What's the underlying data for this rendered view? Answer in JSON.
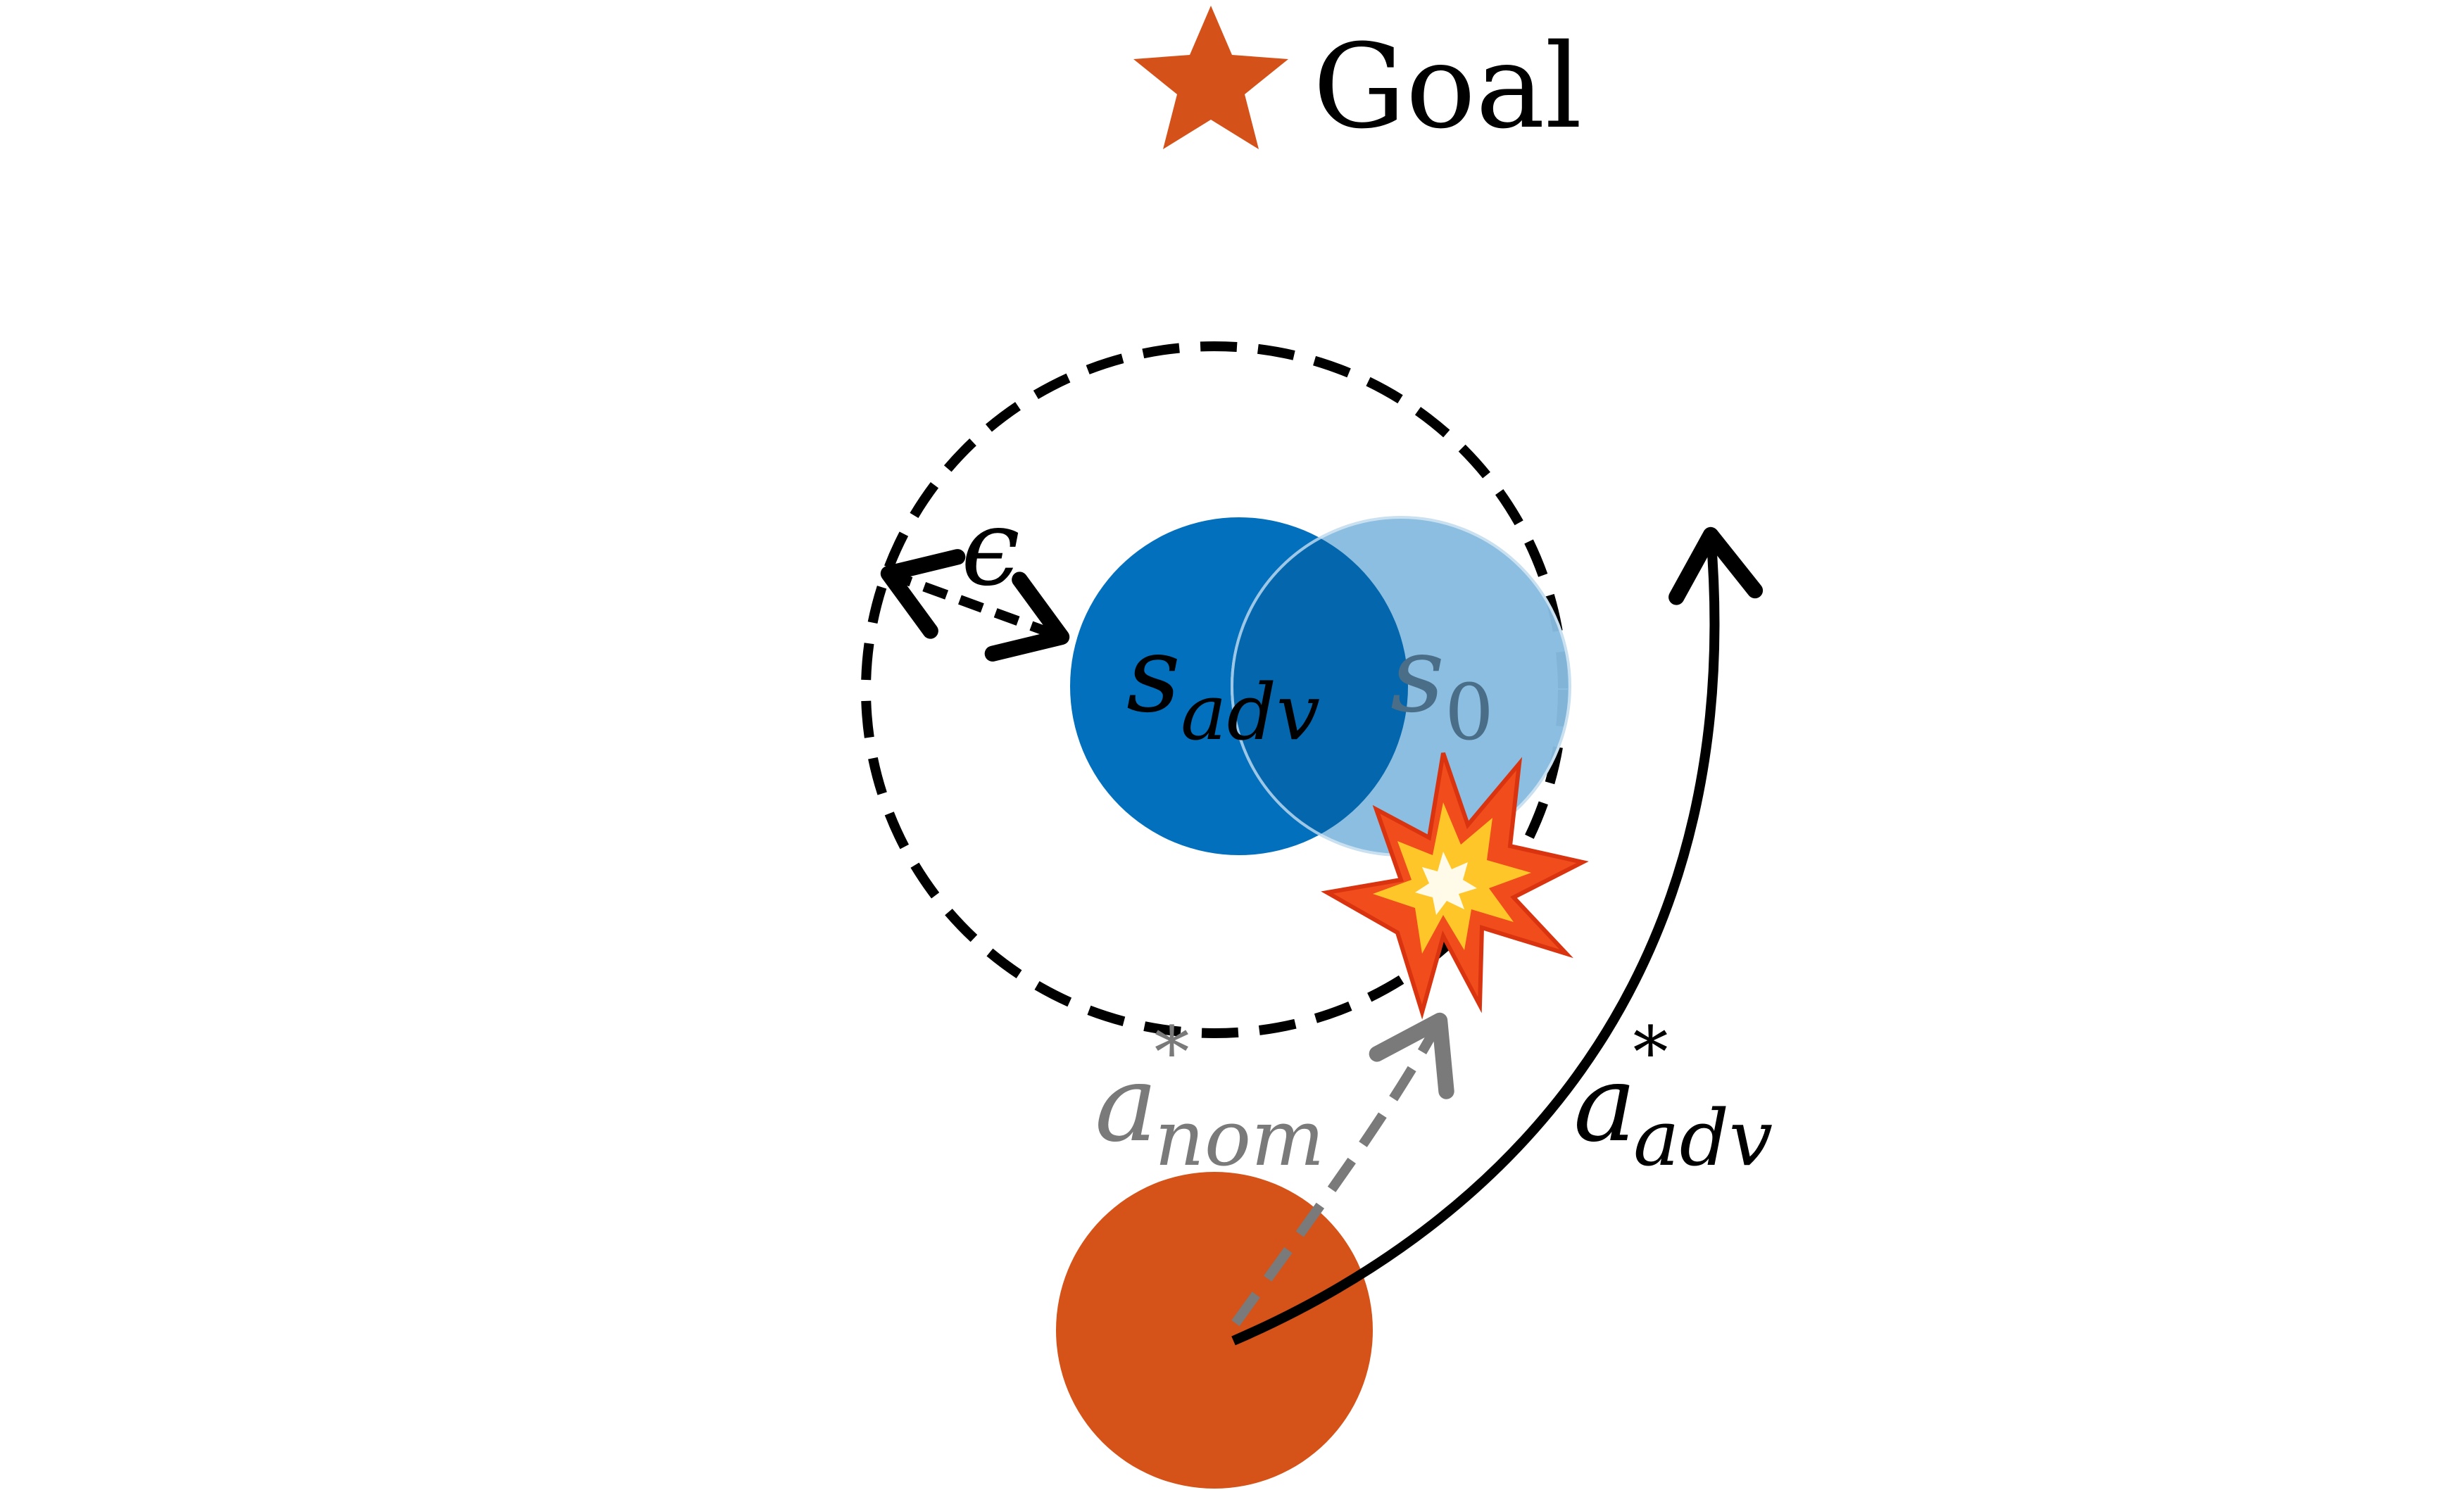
{
  "goal": {
    "label": "Goal",
    "icon": "star-icon",
    "color": "#D45219"
  },
  "epsilon": {
    "symbol": "ϵ"
  },
  "states": {
    "adversarial": {
      "base": "s",
      "subscript": "adv",
      "color": "#0270BC"
    },
    "nominal": {
      "base": "s",
      "subscript": "0",
      "color": "#86BBE0"
    }
  },
  "actions": {
    "nominal": {
      "base": "a",
      "superscript": "*",
      "subscript": "nom",
      "color": "#7A7A7A"
    },
    "adversarial": {
      "base": "a",
      "superscript": "*",
      "subscript": "adv",
      "color": "#000000"
    }
  },
  "agent": {
    "color": "#D55218"
  },
  "collision": {
    "icon": "collision-icon"
  }
}
